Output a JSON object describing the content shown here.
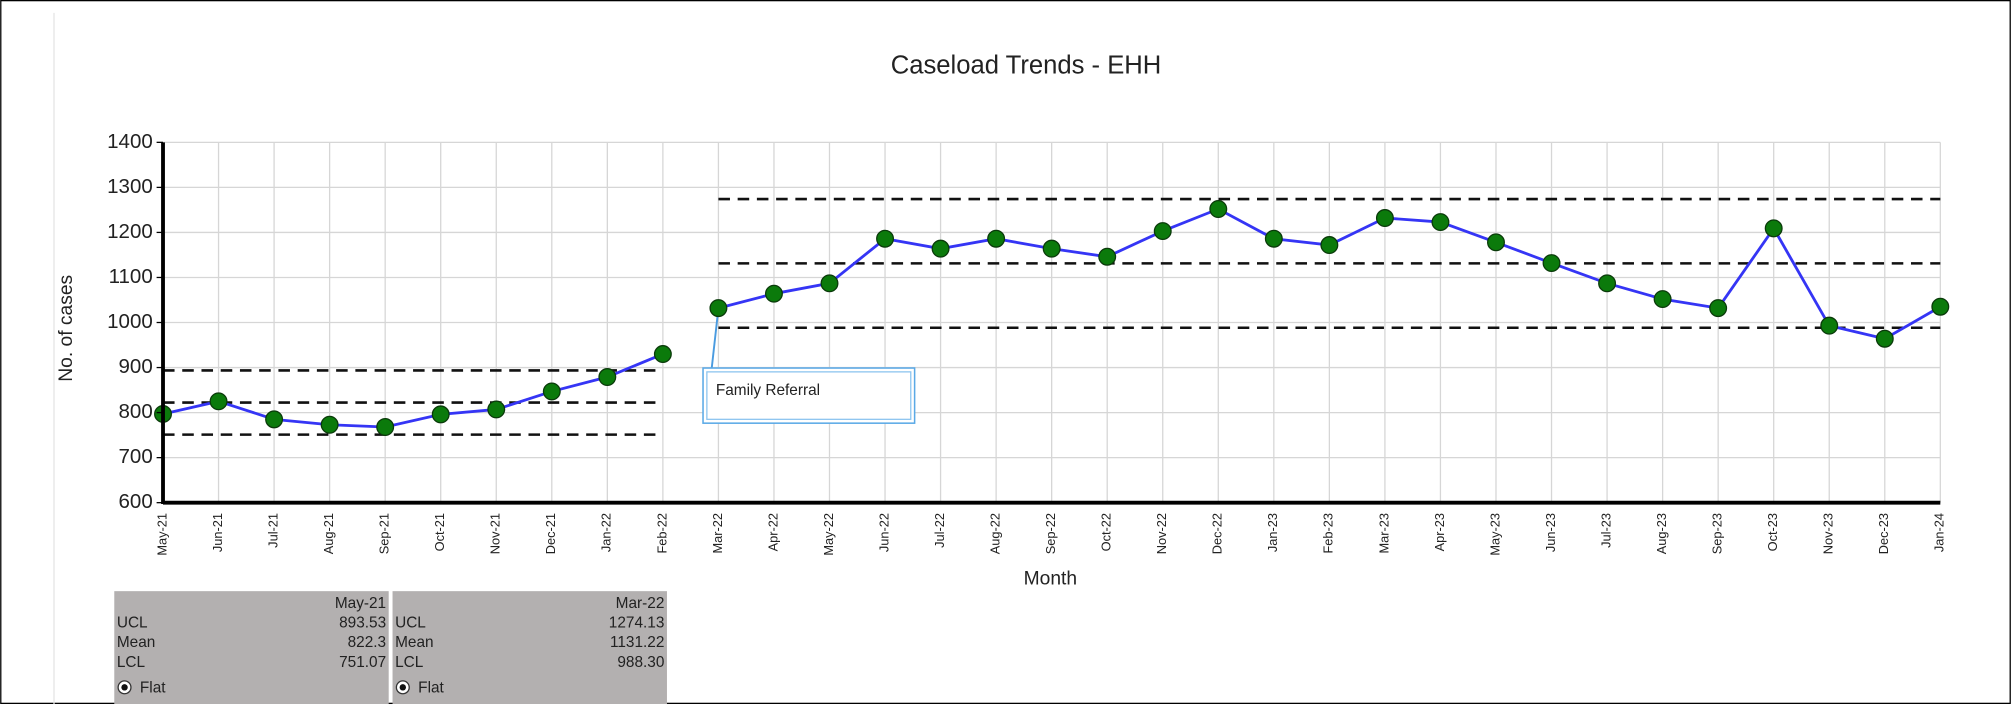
{
  "chart_data": {
    "type": "line",
    "title": "Caseload Trends - EHH",
    "x_label": "Month",
    "y_label": "No. of cases",
    "categories": [
      "May-21",
      "Jun-21",
      "Jul-21",
      "Aug-21",
      "Sep-21",
      "Oct-21",
      "Nov-21",
      "Dec-21",
      "Jan-22",
      "Feb-22",
      "Mar-22",
      "Apr-22",
      "May-22",
      "Jun-22",
      "Jul-22",
      "Aug-22",
      "Sep-22",
      "Oct-22",
      "Nov-22",
      "Dec-22",
      "Jan-23",
      "Feb-23",
      "Mar-23",
      "Apr-23",
      "May-23",
      "Jun-23",
      "Jul-23",
      "Aug-23",
      "Sep-23",
      "Oct-23",
      "Nov-23",
      "Dec-23",
      "Jan-24"
    ],
    "series": [
      {
        "color": "#3535f5",
        "marker_color": "#0b7a0b",
        "values": [
          797,
          825,
          785,
          773,
          768,
          796,
          807,
          847,
          879,
          930,
          1032,
          1064,
          1087,
          1186,
          1164,
          1186,
          1164,
          1146,
          1203,
          1252,
          1186,
          1172,
          1232,
          1223,
          1178,
          1132,
          1087,
          1052,
          1032,
          1209,
          993,
          964,
          1035
        ]
      }
    ],
    "ylim": [
      600,
      1400
    ],
    "yticks": [
      600,
      700,
      800,
      900,
      1000,
      1100,
      1200,
      1300,
      1400
    ],
    "grid": true,
    "limit_labels": [
      "UCL",
      "Mean",
      "LCL"
    ],
    "control_limits": [
      {
        "start": "May-21",
        "ucl": 893.53,
        "mean": 822.3,
        "lcl": 751.07,
        "method": "Flat"
      },
      {
        "start": "Mar-22",
        "ucl": 1274.13,
        "mean": 1131.22,
        "lcl": {
          "value": 988.3,
          "label": "988.30"
        },
        "method": "Flat"
      }
    ],
    "annotations": [
      {
        "text": "Family Referral",
        "x": "Mar-22"
      }
    ]
  }
}
